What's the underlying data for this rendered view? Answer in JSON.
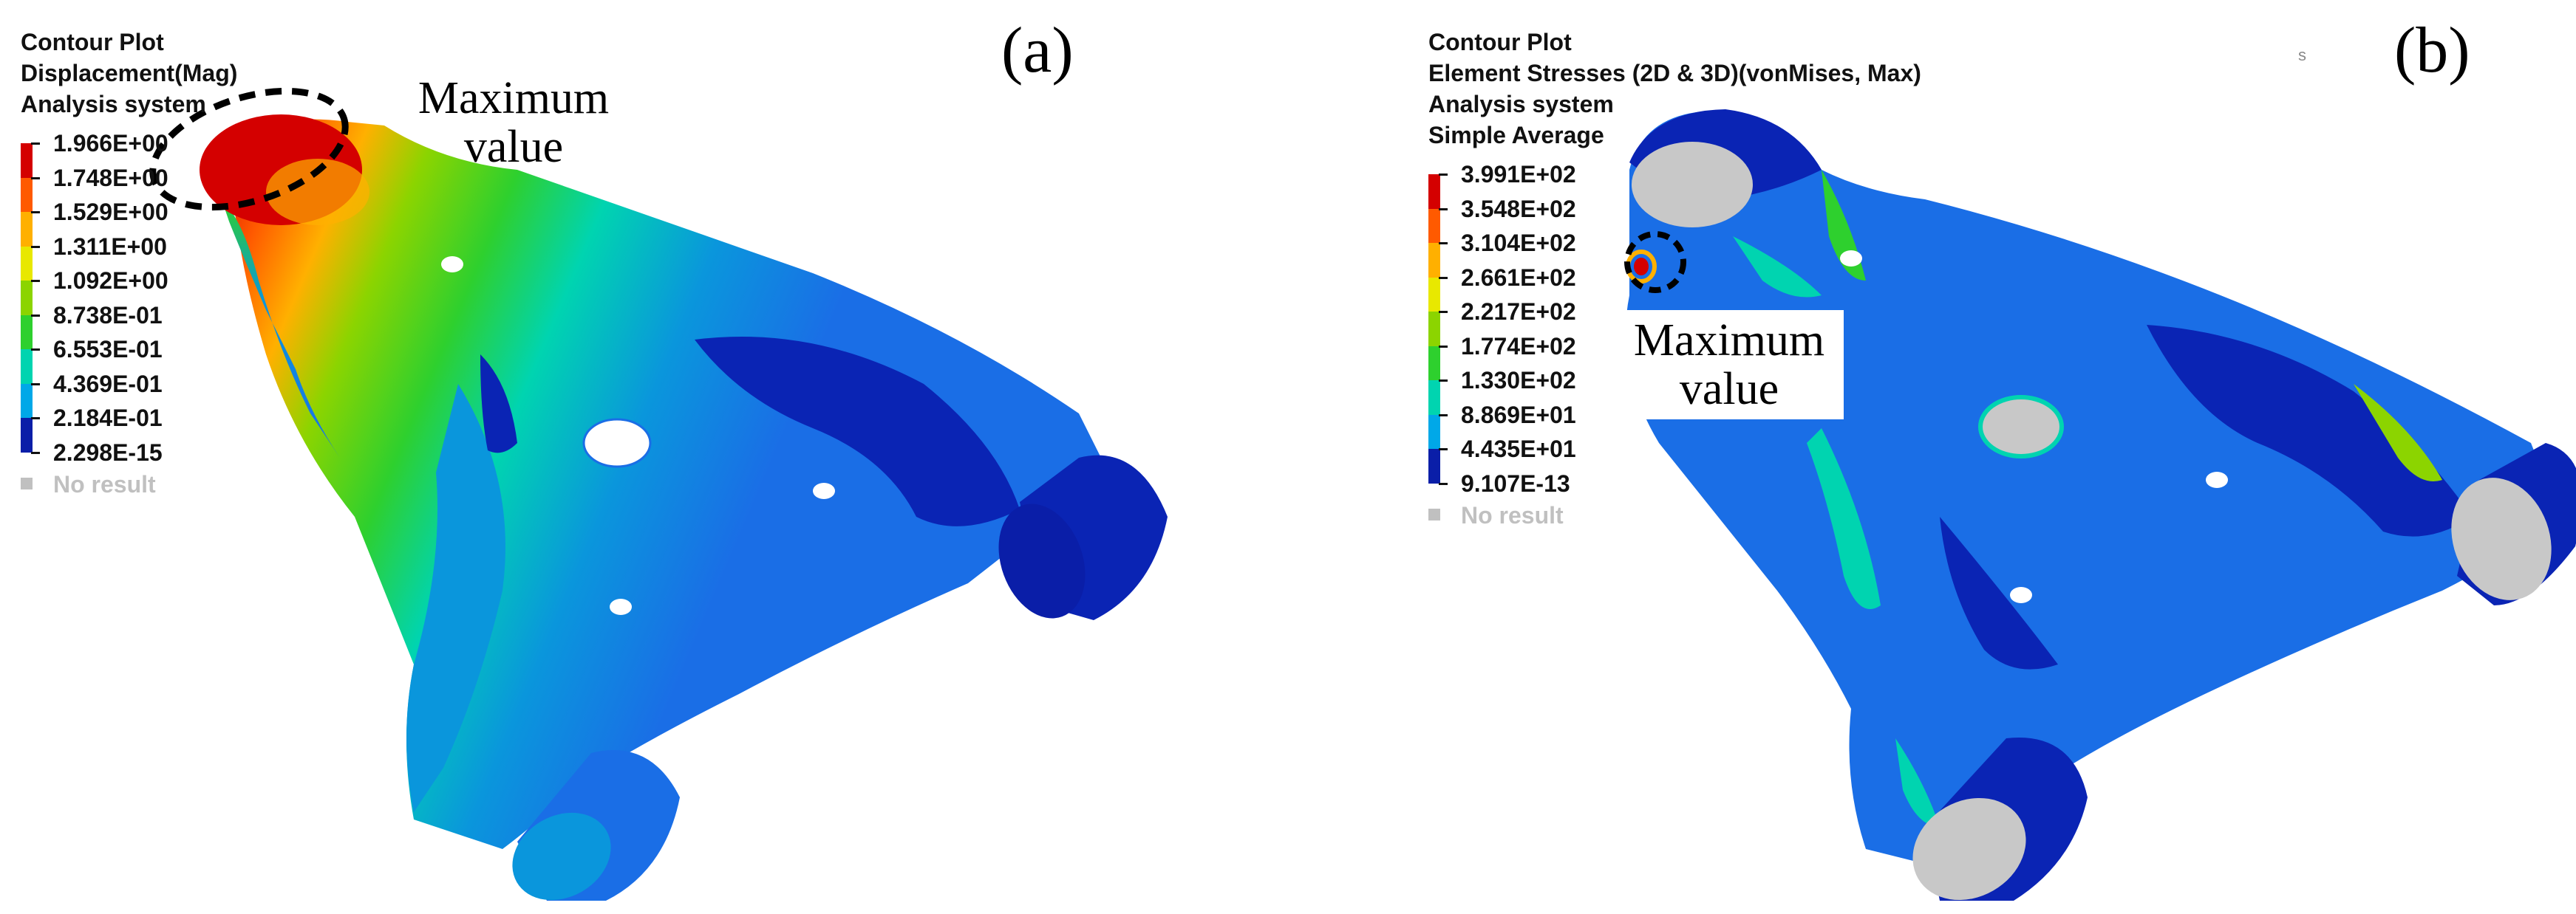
{
  "panels": [
    {
      "label": "(a)",
      "legend": {
        "header": [
          "Contour Plot",
          "Displacement(Mag)",
          "Analysis system"
        ],
        "values": [
          "1.966E+00",
          "1.748E+00",
          "1.529E+00",
          "1.311E+00",
          "1.092E+00",
          "8.738E-01",
          "6.553E-01",
          "4.369E-01",
          "2.184E-01",
          "2.298E-15"
        ],
        "no_result": "No result"
      },
      "annotation": "Maximum value"
    },
    {
      "label": "(b)",
      "legend": {
        "header": [
          "Contour Plot",
          "Element Stresses (2D & 3D)(vonMises, Max)",
          "Analysis system",
          "Simple Average"
        ],
        "values": [
          "3.991E+02",
          "3.548E+02",
          "3.104E+02",
          "2.661E+02",
          "2.217E+02",
          "1.774E+02",
          "1.330E+02",
          "8.869E+01",
          "4.435E+01",
          "9.107E-13"
        ],
        "no_result": "No result"
      },
      "annotation": "Maximum value",
      "corner_mark": "s"
    }
  ],
  "colors": {
    "scale": [
      "#d40000",
      "#ff5a00",
      "#ffb000",
      "#e8e800",
      "#8cd400",
      "#2ed02e",
      "#00d4b0",
      "#00a8e8",
      "#1e64f0",
      "#0a1ea8"
    ],
    "no_result": "#c0c0c0",
    "model_base": "#1a6ee6",
    "model_dark": "#0a24b4",
    "model_mid": "#0a96dc"
  }
}
